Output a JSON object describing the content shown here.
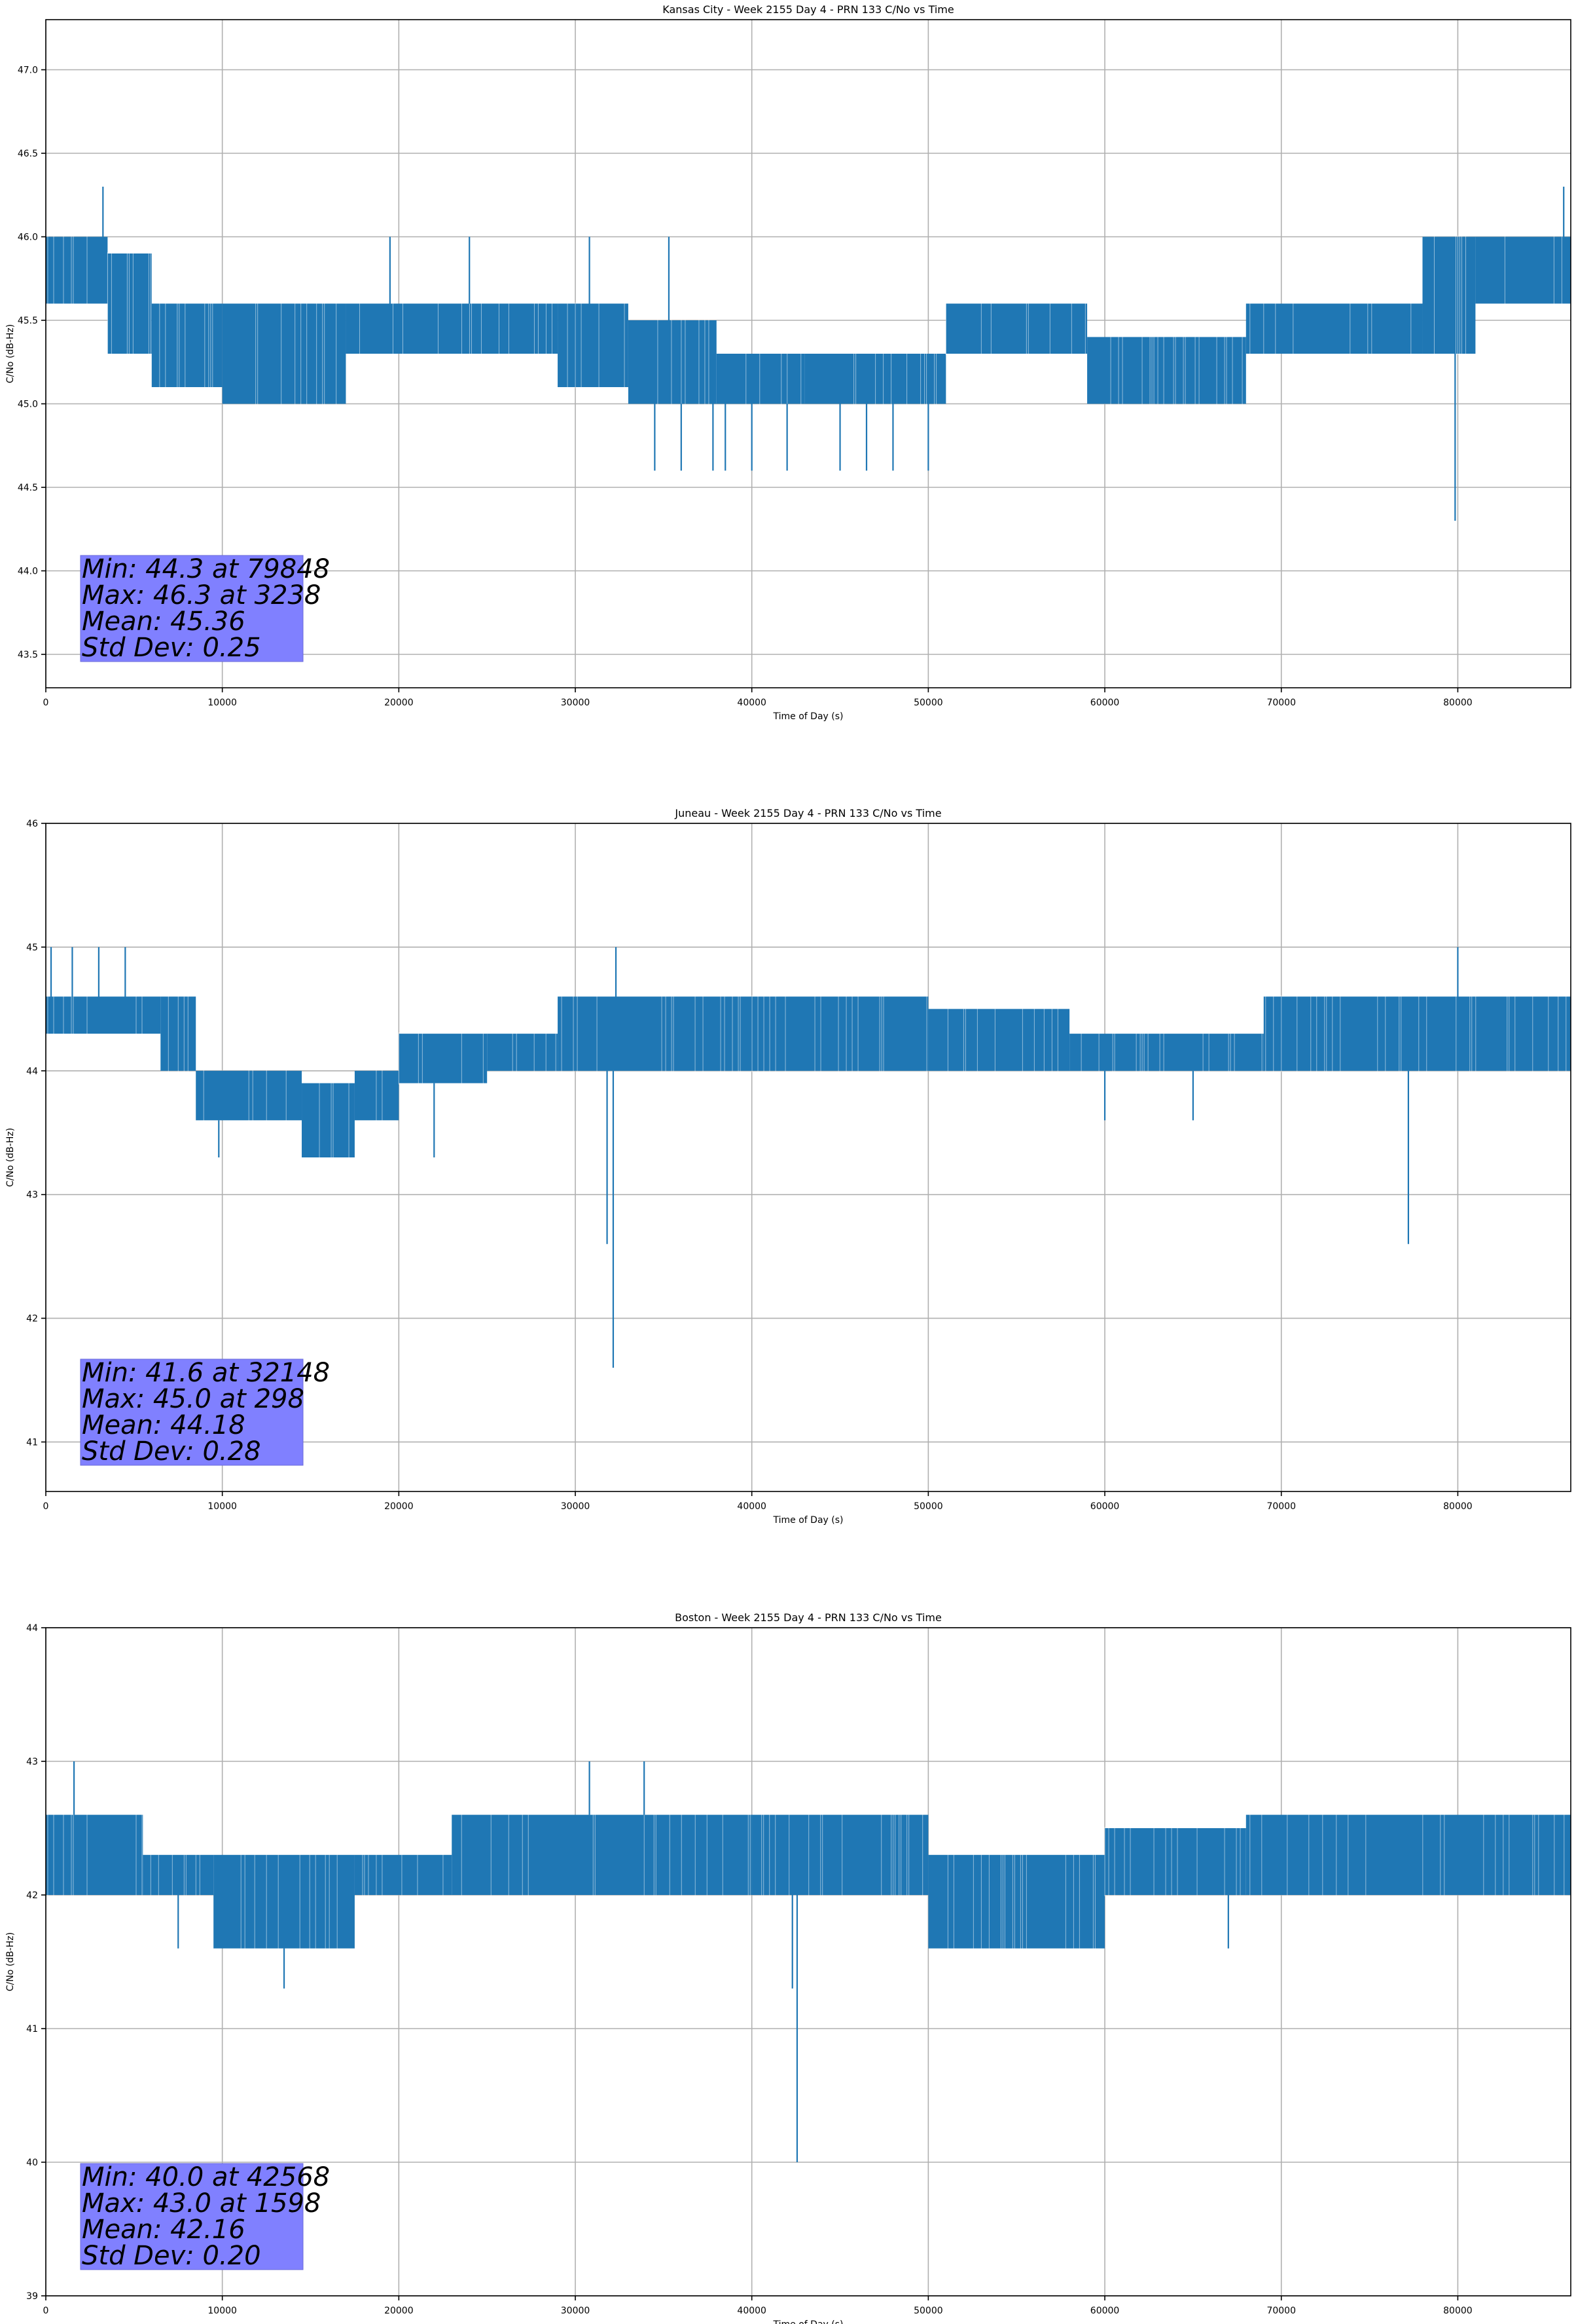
{
  "colors": {
    "series": "#1f77b4",
    "grid": "#b0b0b0",
    "stats_box": "#8080ff",
    "axes": "#000000"
  },
  "chart_data": [
    {
      "type": "line",
      "title": "Kansas City - Week 2155 Day 4 - PRN 133 C/No vs Time",
      "xlabel": "Time of Day (s)",
      "ylabel": "C/No (dB-Hz)",
      "xlim": [
        0,
        86400
      ],
      "ylim": [
        43.3,
        47.3
      ],
      "xticks": [
        0,
        10000,
        20000,
        30000,
        40000,
        50000,
        60000,
        70000,
        80000
      ],
      "xtick_labels": [
        "0",
        "10000",
        "20000",
        "30000",
        "40000",
        "50000",
        "60000",
        "70000",
        "80000"
      ],
      "yticks": [
        43.5,
        44.0,
        44.5,
        45.0,
        45.5,
        46.0,
        46.5,
        47.0
      ],
      "ytick_labels": [
        "43.5",
        "44.0",
        "44.5",
        "45.0",
        "45.5",
        "46.0",
        "46.5",
        "47.0"
      ],
      "grid": true,
      "stats": [
        "Min: 44.3 at 79848",
        "Max: 46.3 at 3238",
        "Mean: 45.36",
        "Std Dev: 0.25"
      ],
      "series": [
        {
          "segments": [
            {
              "x": [
                0,
                3500
              ],
              "low": 45.6,
              "high": 46.0
            },
            {
              "x": [
                3500,
                6000
              ],
              "low": 45.3,
              "high": 45.9
            },
            {
              "x": [
                6000,
                10000
              ],
              "low": 45.1,
              "high": 45.6
            },
            {
              "x": [
                10000,
                17000
              ],
              "low": 45.0,
              "high": 45.6
            },
            {
              "x": [
                17000,
                29000
              ],
              "low": 45.3,
              "high": 45.6
            },
            {
              "x": [
                29000,
                33000
              ],
              "low": 45.1,
              "high": 45.6
            },
            {
              "x": [
                33000,
                38000
              ],
              "low": 45.0,
              "high": 45.5
            },
            {
              "x": [
                38000,
                43000
              ],
              "low": 45.0,
              "high": 45.3
            },
            {
              "x": [
                43000,
                51000
              ],
              "low": 45.0,
              "high": 45.3
            },
            {
              "x": [
                51000,
                59000
              ],
              "low": 45.3,
              "high": 45.6
            },
            {
              "x": [
                59000,
                68000
              ],
              "low": 45.0,
              "high": 45.4
            },
            {
              "x": [
                68000,
                78000
              ],
              "low": 45.3,
              "high": 45.6
            },
            {
              "x": [
                78000,
                81000
              ],
              "low": 45.3,
              "high": 46.0
            },
            {
              "x": [
                81000,
                86400
              ],
              "low": 45.6,
              "high": 46.0
            }
          ],
          "spikes": [
            {
              "x": 3238,
              "y": 46.3
            },
            {
              "x": 19500,
              "y": 46.0
            },
            {
              "x": 24000,
              "y": 46.0
            },
            {
              "x": 30800,
              "y": 46.0
            },
            {
              "x": 35300,
              "y": 46.0
            },
            {
              "x": 34500,
              "y": 44.6
            },
            {
              "x": 36000,
              "y": 44.6
            },
            {
              "x": 37800,
              "y": 44.6
            },
            {
              "x": 38500,
              "y": 44.6
            },
            {
              "x": 40000,
              "y": 44.6
            },
            {
              "x": 42000,
              "y": 44.6
            },
            {
              "x": 45000,
              "y": 44.6
            },
            {
              "x": 46500,
              "y": 44.6
            },
            {
              "x": 48000,
              "y": 44.6
            },
            {
              "x": 50000,
              "y": 44.6
            },
            {
              "x": 79848,
              "y": 44.3
            },
            {
              "x": 86000,
              "y": 46.3
            }
          ]
        }
      ]
    },
    {
      "type": "line",
      "title": "Juneau - Week 2155 Day 4 - PRN 133 C/No vs Time",
      "xlabel": "Time of Day (s)",
      "ylabel": "C/No (dB-Hz)",
      "xlim": [
        0,
        86400
      ],
      "ylim": [
        40.6,
        46.0
      ],
      "xticks": [
        0,
        10000,
        20000,
        30000,
        40000,
        50000,
        60000,
        70000,
        80000
      ],
      "xtick_labels": [
        "0",
        "10000",
        "20000",
        "30000",
        "40000",
        "50000",
        "60000",
        "70000",
        "80000"
      ],
      "yticks": [
        41,
        42,
        43,
        44,
        45,
        46
      ],
      "ytick_labels": [
        "41",
        "42",
        "43",
        "44",
        "45",
        "46"
      ],
      "grid": true,
      "stats": [
        "Min: 41.6 at 32148",
        "Max: 45.0 at 298",
        "Mean: 44.18",
        "Std Dev: 0.28"
      ],
      "series": [
        {
          "segments": [
            {
              "x": [
                0,
                6500
              ],
              "low": 44.3,
              "high": 44.6
            },
            {
              "x": [
                6500,
                8500
              ],
              "low": 44.0,
              "high": 44.6
            },
            {
              "x": [
                8500,
                14500
              ],
              "low": 43.6,
              "high": 44.0
            },
            {
              "x": [
                14500,
                17500
              ],
              "low": 43.3,
              "high": 43.9
            },
            {
              "x": [
                17500,
                20000
              ],
              "low": 43.6,
              "high": 44.0
            },
            {
              "x": [
                20000,
                25000
              ],
              "low": 43.9,
              "high": 44.3
            },
            {
              "x": [
                25000,
                29000
              ],
              "low": 44.0,
              "high": 44.3
            },
            {
              "x": [
                29000,
                50000
              ],
              "low": 44.0,
              "high": 44.6
            },
            {
              "x": [
                50000,
                58000
              ],
              "low": 44.0,
              "high": 44.5
            },
            {
              "x": [
                58000,
                69000
              ],
              "low": 44.0,
              "high": 44.3
            },
            {
              "x": [
                69000,
                86400
              ],
              "low": 44.0,
              "high": 44.6
            }
          ],
          "spikes": [
            {
              "x": 298,
              "y": 45.0
            },
            {
              "x": 1500,
              "y": 45.0
            },
            {
              "x": 3000,
              "y": 45.0
            },
            {
              "x": 4500,
              "y": 45.0
            },
            {
              "x": 9800,
              "y": 43.3
            },
            {
              "x": 22000,
              "y": 43.3
            },
            {
              "x": 31800,
              "y": 42.6
            },
            {
              "x": 32148,
              "y": 41.6
            },
            {
              "x": 32300,
              "y": 45.0
            },
            {
              "x": 60000,
              "y": 43.6
            },
            {
              "x": 65000,
              "y": 43.6
            },
            {
              "x": 77200,
              "y": 42.6
            },
            {
              "x": 80000,
              "y": 45.0
            }
          ]
        }
      ]
    },
    {
      "type": "line",
      "title": "Boston - Week 2155 Day 4 - PRN 133 C/No vs Time",
      "xlabel": "Time of Day (s)",
      "ylabel": "C/No (dB-Hz)",
      "xlim": [
        0,
        86400
      ],
      "ylim": [
        39.0,
        44.0
      ],
      "xticks": [
        0,
        10000,
        20000,
        30000,
        40000,
        50000,
        60000,
        70000,
        80000
      ],
      "xtick_labels": [
        "0",
        "10000",
        "20000",
        "30000",
        "40000",
        "50000",
        "60000",
        "70000",
        "80000"
      ],
      "yticks": [
        39,
        40,
        41,
        42,
        43,
        44
      ],
      "ytick_labels": [
        "39",
        "40",
        "41",
        "42",
        "43",
        "44"
      ],
      "grid": true,
      "stats": [
        "Min: 40.0 at 42568",
        "Max: 43.0 at 1598",
        "Mean: 42.16",
        "Std Dev: 0.20"
      ],
      "series": [
        {
          "segments": [
            {
              "x": [
                0,
                5500
              ],
              "low": 42.0,
              "high": 42.6
            },
            {
              "x": [
                5500,
                9500
              ],
              "low": 42.0,
              "high": 42.3
            },
            {
              "x": [
                9500,
                17500
              ],
              "low": 41.6,
              "high": 42.3
            },
            {
              "x": [
                17500,
                23000
              ],
              "low": 42.0,
              "high": 42.3
            },
            {
              "x": [
                23000,
                40000
              ],
              "low": 42.0,
              "high": 42.6
            },
            {
              "x": [
                40000,
                50000
              ],
              "low": 42.0,
              "high": 42.6
            },
            {
              "x": [
                50000,
                60000
              ],
              "low": 41.6,
              "high": 42.3
            },
            {
              "x": [
                60000,
                68000
              ],
              "low": 42.0,
              "high": 42.5
            },
            {
              "x": [
                68000,
                86400
              ],
              "low": 42.0,
              "high": 42.6
            }
          ],
          "spikes": [
            {
              "x": 1598,
              "y": 43.0
            },
            {
              "x": 7500,
              "y": 41.6
            },
            {
              "x": 13500,
              "y": 41.3
            },
            {
              "x": 30800,
              "y": 43.0
            },
            {
              "x": 33900,
              "y": 43.0
            },
            {
              "x": 42568,
              "y": 40.0
            },
            {
              "x": 42300,
              "y": 41.3
            },
            {
              "x": 67000,
              "y": 41.6
            }
          ]
        }
      ]
    }
  ]
}
